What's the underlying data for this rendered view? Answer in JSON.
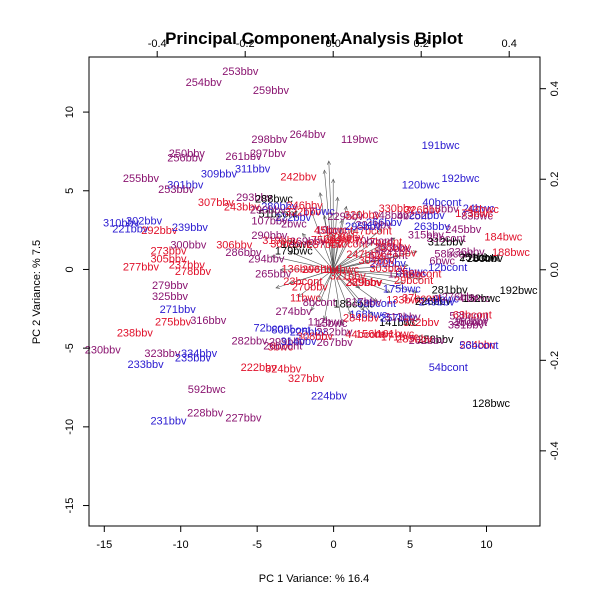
{
  "chart_data": {
    "type": "scatter",
    "title": "Principal Component Analysis Biplot",
    "xlabel": "PC 1 Variance: % 16.4",
    "ylabel": "PC 2 Variance: % 7.5",
    "xlim": [
      -16,
      13.5
    ],
    "ylim": [
      -16.3,
      13.5
    ],
    "x_ticks": [
      -15,
      -10,
      -5,
      0,
      5,
      10
    ],
    "y_ticks": [
      -15,
      -10,
      -5,
      0,
      5,
      10
    ],
    "x2lim": [
      -0.555,
      0.47
    ],
    "y2lim": [
      -0.566,
      0.47
    ],
    "x2_ticks": [
      -0.4,
      -0.2,
      0.0,
      0.2,
      0.4
    ],
    "y2_ticks": [
      -0.4,
      -0.2,
      0.0,
      0.2,
      0.4
    ],
    "grid": false,
    "legend": "none",
    "colors": {
      "red": "#e0102a",
      "blue": "#2a1ad0",
      "purple": "#8a1470",
      "black": "#000000",
      "arrow": "#555555"
    },
    "points": [
      {
        "label": "253bbv",
        "x": -6.1,
        "y": 12.6,
        "color": "purple"
      },
      {
        "label": "254bbv",
        "x": -8.5,
        "y": 11.9,
        "color": "purple"
      },
      {
        "label": "259bbv",
        "x": -4.1,
        "y": 11.4,
        "color": "purple"
      },
      {
        "label": "264bbv",
        "x": -1.7,
        "y": 8.6,
        "color": "purple"
      },
      {
        "label": "119bwc",
        "x": 1.7,
        "y": 8.3,
        "color": "purple"
      },
      {
        "label": "191bwc",
        "x": 7.0,
        "y": 7.9,
        "color": "blue"
      },
      {
        "label": "298bbv",
        "x": -4.2,
        "y": 8.3,
        "color": "purple"
      },
      {
        "label": "297bbv",
        "x": -4.3,
        "y": 7.4,
        "color": "purple"
      },
      {
        "label": "250bbv",
        "x": -9.6,
        "y": 7.4,
        "color": "purple"
      },
      {
        "label": "256bbv",
        "x": -9.7,
        "y": 7.1,
        "color": "purple"
      },
      {
        "label": "261bbv",
        "x": -5.9,
        "y": 7.2,
        "color": "purple"
      },
      {
        "label": "311bbv",
        "x": -5.3,
        "y": 6.4,
        "color": "blue"
      },
      {
        "label": "309bbv",
        "x": -7.5,
        "y": 6.1,
        "color": "blue"
      },
      {
        "label": "242bbv",
        "x": -2.3,
        "y": 5.9,
        "color": "red"
      },
      {
        "label": "255bbv",
        "x": -12.6,
        "y": 5.8,
        "color": "purple"
      },
      {
        "label": "301bbv",
        "x": -9.7,
        "y": 5.4,
        "color": "blue"
      },
      {
        "label": "253bbv",
        "x": -10.3,
        "y": 5.1,
        "color": "purple"
      },
      {
        "label": "192bwc",
        "x": 8.3,
        "y": 5.8,
        "color": "blue"
      },
      {
        "label": "120bwc",
        "x": 5.7,
        "y": 5.4,
        "color": "blue"
      },
      {
        "label": "307bbv",
        "x": -7.7,
        "y": 4.3,
        "color": "red"
      },
      {
        "label": "243bbv",
        "x": -6.0,
        "y": 4.0,
        "color": "red"
      },
      {
        "label": "293bbv",
        "x": -5.2,
        "y": 4.6,
        "color": "purple"
      },
      {
        "label": "288bwc",
        "x": -3.9,
        "y": 4.5,
        "color": "black"
      },
      {
        "label": "246bbv",
        "x": -1.9,
        "y": 4.1,
        "color": "red"
      },
      {
        "label": "290bbv",
        "x": -4.3,
        "y": 3.8,
        "color": "purple"
      },
      {
        "label": "173bwc",
        "x": 9.2,
        "y": 3.6,
        "color": "red"
      },
      {
        "label": "184bwc",
        "x": 11.1,
        "y": 2.1,
        "color": "red"
      },
      {
        "label": "188bwc",
        "x": 11.6,
        "y": 1.1,
        "color": "red"
      },
      {
        "label": "310bbv",
        "x": -13.9,
        "y": 3.0,
        "color": "blue"
      },
      {
        "label": "302bbv",
        "x": -12.4,
        "y": 3.1,
        "color": "blue"
      },
      {
        "label": "221bbv",
        "x": -13.3,
        "y": 2.6,
        "color": "blue"
      },
      {
        "label": "292bbv",
        "x": -11.4,
        "y": 2.5,
        "color": "red"
      },
      {
        "label": "239bbv",
        "x": -9.4,
        "y": 2.7,
        "color": "blue"
      },
      {
        "label": "107bbv",
        "x": -4.2,
        "y": 3.1,
        "color": "purple"
      },
      {
        "label": "290bbv",
        "x": -4.2,
        "y": 2.2,
        "color": "purple"
      },
      {
        "label": "300bbv",
        "x": -9.5,
        "y": 1.6,
        "color": "purple"
      },
      {
        "label": "306bbv",
        "x": -6.5,
        "y": 1.6,
        "color": "red"
      },
      {
        "label": "286bbv",
        "x": -5.9,
        "y": 1.1,
        "color": "purple"
      },
      {
        "label": "179bwc",
        "x": -2.6,
        "y": 1.2,
        "color": "black"
      },
      {
        "label": "294bbv",
        "x": -4.4,
        "y": 0.7,
        "color": "purple"
      },
      {
        "label": "273bbv",
        "x": -10.8,
        "y": 1.2,
        "color": "red"
      },
      {
        "label": "305bbv",
        "x": -10.8,
        "y": 0.7,
        "color": "red"
      },
      {
        "label": "237bbv",
        "x": -9.6,
        "y": 0.3,
        "color": "red"
      },
      {
        "label": "277bbv",
        "x": -12.6,
        "y": 0.2,
        "color": "red"
      },
      {
        "label": "278bbv",
        "x": -9.2,
        "y": -0.1,
        "color": "red"
      },
      {
        "label": "279bbv",
        "x": -10.7,
        "y": -1.0,
        "color": "purple"
      },
      {
        "label": "325bbv",
        "x": -10.7,
        "y": -1.7,
        "color": "purple"
      },
      {
        "label": "271bbv",
        "x": -10.2,
        "y": -2.5,
        "color": "blue"
      },
      {
        "label": "275bbv",
        "x": -10.5,
        "y": -3.3,
        "color": "red"
      },
      {
        "label": "316bbv",
        "x": -8.2,
        "y": -3.2,
        "color": "purple"
      },
      {
        "label": "238bbv",
        "x": -13.0,
        "y": -4.0,
        "color": "red"
      },
      {
        "label": "230bbv",
        "x": -15.1,
        "y": -5.1,
        "color": "purple"
      },
      {
        "label": "323bbv",
        "x": -11.2,
        "y": -5.3,
        "color": "purple"
      },
      {
        "label": "334bbv",
        "x": -8.8,
        "y": -5.3,
        "color": "blue"
      },
      {
        "label": "235bbv",
        "x": -9.2,
        "y": -5.6,
        "color": "blue"
      },
      {
        "label": "233bbv",
        "x": -12.3,
        "y": -6.0,
        "color": "blue"
      },
      {
        "label": "282bbv",
        "x": -5.5,
        "y": -4.5,
        "color": "purple"
      },
      {
        "label": "222bbv",
        "x": -4.9,
        "y": -6.2,
        "color": "red"
      },
      {
        "label": "324bbv",
        "x": -3.3,
        "y": -6.3,
        "color": "red"
      },
      {
        "label": "327bbv",
        "x": -1.8,
        "y": -6.9,
        "color": "red"
      },
      {
        "label": "592bwc",
        "x": -8.3,
        "y": -7.6,
        "color": "purple"
      },
      {
        "label": "224bbv",
        "x": -0.3,
        "y": -8.0,
        "color": "blue"
      },
      {
        "label": "228bbv",
        "x": -8.4,
        "y": -9.1,
        "color": "purple"
      },
      {
        "label": "227bbv",
        "x": -5.9,
        "y": -9.4,
        "color": "purple"
      },
      {
        "label": "231bbv",
        "x": -10.8,
        "y": -9.6,
        "color": "blue"
      },
      {
        "label": "192bwc",
        "x": 12.1,
        "y": -1.3,
        "color": "black"
      },
      {
        "label": "56bcont",
        "x": 9.5,
        "y": -4.8,
        "color": "blue"
      },
      {
        "label": "54bcont",
        "x": 7.5,
        "y": -6.2,
        "color": "blue"
      },
      {
        "label": "128bwc",
        "x": 10.3,
        "y": -8.5,
        "color": "black"
      }
    ],
    "center_labels": [
      "2bwc",
      "3bwc",
      "6bwc",
      "9bwc",
      "10bwc",
      "11bwc",
      "15bwc",
      "17bwc",
      "24bwc",
      "35bwc",
      "41bwc",
      "43bwc",
      "83bwc",
      "97bwc",
      "112bwc",
      "114bwc",
      "118bwc",
      "133bwc",
      "136bwc",
      "141bwc",
      "152bwc",
      "156bwc",
      "161bwc",
      "168bwc",
      "171bwc",
      "175bwc",
      "1bcont",
      "4bcont",
      "7bcont",
      "8bcont",
      "12bcont",
      "18bcont",
      "23bcont",
      "26bcont",
      "29bcont",
      "30bcont",
      "33bcont",
      "37bcont",
      "40bcont",
      "44bcont",
      "45bcont",
      "47bcont",
      "48bcont",
      "51bcont",
      "52bcont",
      "53bcont",
      "58bcont",
      "62bcont",
      "63bcont",
      "66bcont",
      "70bcont",
      "72bcont",
      "75bcont",
      "77bcont",
      "80bcont",
      "225bbv",
      "226bbv",
      "229bbv",
      "232bbv",
      "234bbv",
      "236bbv",
      "240bbv",
      "241bbv",
      "244bbv",
      "245bbv",
      "247bbv",
      "248bbv",
      "249bbv",
      "251bbv",
      "252bbv",
      "257bbv",
      "258bbv",
      "260bbv",
      "262bbv",
      "263bbv",
      "265bbv",
      "266bbv",
      "267bbv",
      "268bbv",
      "269bbv",
      "270bbv",
      "272bbv",
      "274bbv",
      "276bbv",
      "280bbv",
      "281bbv",
      "283bbv",
      "284bbv",
      "285bbv",
      "287bbv",
      "289bbv",
      "291bbv",
      "295bbv",
      "296bbv",
      "299bbv",
      "303bbv",
      "304bbv",
      "308bbv",
      "312bbv",
      "313bbv",
      "314bbv",
      "315bbv",
      "317bbv",
      "318bbv",
      "319bbv",
      "320bbv",
      "321bbv",
      "322bbv",
      "326bbv",
      "328bbv",
      "329bbv",
      "330bbv",
      "331bbv",
      "332bbv",
      "333bbv"
    ],
    "loading_arrows": [
      {
        "x": -0.02,
        "y": 0.22
      },
      {
        "x": -0.01,
        "y": 0.24
      },
      {
        "x": 0.0,
        "y": 0.2
      },
      {
        "x": -0.03,
        "y": 0.17
      },
      {
        "x": 0.01,
        "y": 0.16
      },
      {
        "x": -0.02,
        "y": 0.12
      },
      {
        "x": 0.02,
        "y": 0.11
      },
      {
        "x": 0.05,
        "y": 0.09
      },
      {
        "x": 0.09,
        "y": 0.06
      },
      {
        "x": 0.12,
        "y": 0.05
      },
      {
        "x": 0.15,
        "y": 0.03
      },
      {
        "x": 0.17,
        "y": 0.01
      },
      {
        "x": 0.18,
        "y": -0.01
      },
      {
        "x": 0.16,
        "y": -0.03
      },
      {
        "x": 0.13,
        "y": -0.05
      },
      {
        "x": 0.1,
        "y": -0.07
      },
      {
        "x": 0.07,
        "y": -0.09
      },
      {
        "x": 0.04,
        "y": -0.1
      },
      {
        "x": 0.02,
        "y": -0.12
      },
      {
        "x": -0.02,
        "y": -0.11
      },
      {
        "x": -0.05,
        "y": -0.09
      },
      {
        "x": -0.08,
        "y": -0.06
      },
      {
        "x": -0.1,
        "y": -0.03
      },
      {
        "x": -0.12,
        "y": 0.0
      },
      {
        "x": -0.1,
        "y": 0.04
      },
      {
        "x": -0.07,
        "y": 0.08
      },
      {
        "x": -0.05,
        "y": 0.13
      },
      {
        "x": 0.03,
        "y": 0.14
      },
      {
        "x": 0.06,
        "y": 0.13
      },
      {
        "x": 0.11,
        "y": 0.09
      },
      {
        "x": 0.14,
        "y": 0.07
      },
      {
        "x": 0.19,
        "y": 0.04
      },
      {
        "x": 0.2,
        "y": -0.02
      },
      {
        "x": 0.19,
        "y": -0.05
      },
      {
        "x": 0.09,
        "y": -0.1
      },
      {
        "x": -0.03,
        "y": -0.07
      },
      {
        "x": -0.13,
        "y": -0.04
      },
      {
        "x": -0.14,
        "y": 0.03
      },
      {
        "x": 0.08,
        "y": 0.02
      },
      {
        "x": 0.06,
        "y": -0.04
      }
    ]
  }
}
